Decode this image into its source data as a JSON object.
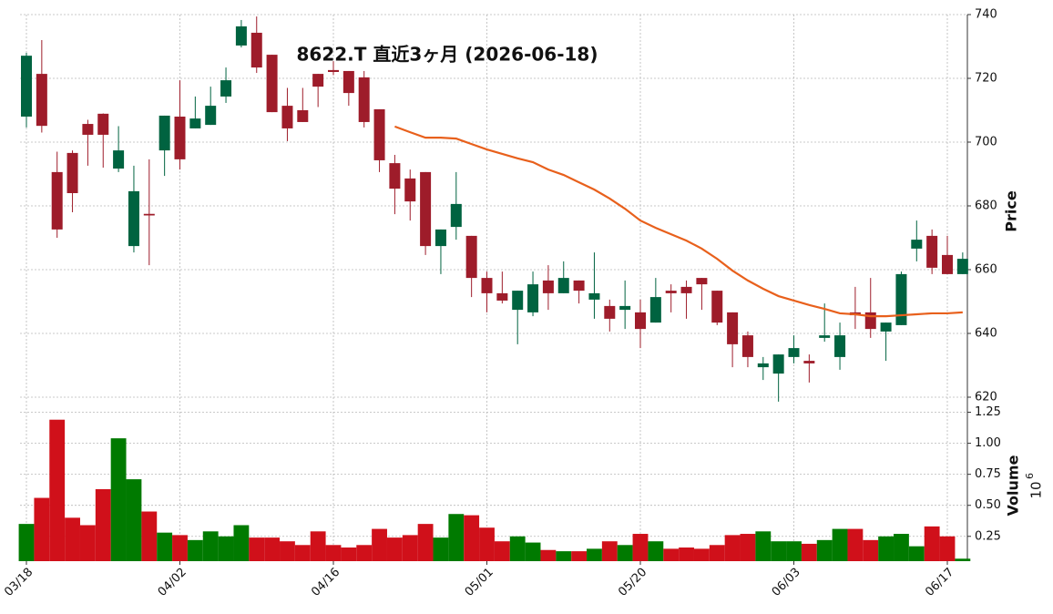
{
  "chart_data": [
    {
      "type": "candlestick",
      "title": "8622.T  直近3ヶ月  (2026-06-18)",
      "ylabel": "Price",
      "categories": [
        "03/18",
        null,
        null,
        null,
        null,
        null,
        null,
        null,
        null,
        null,
        "04/02",
        null,
        null,
        null,
        null,
        null,
        null,
        null,
        null,
        null,
        "04/16",
        null,
        null,
        null,
        null,
        null,
        null,
        null,
        null,
        null,
        "05/01",
        null,
        null,
        null,
        null,
        null,
        null,
        null,
        null,
        null,
        "05/20",
        null,
        null,
        null,
        null,
        null,
        null,
        null,
        null,
        null,
        "06/03",
        null,
        null,
        null,
        null,
        null,
        null,
        null,
        null,
        null,
        "06/17",
        null
      ],
      "open": [
        708,
        721.4,
        690.6,
        696.6,
        705.7,
        708.9,
        691.7,
        667.4,
        677.5,
        697.4,
        708,
        704.3,
        705.4,
        714.3,
        730.3,
        734.3,
        727.4,
        711.4,
        710,
        721.4,
        722.6,
        722.3,
        720.3,
        710.3,
        693.4,
        688.6,
        690.6,
        667.4,
        673.4,
        670.6,
        657.4,
        652.6,
        647.4,
        646.6,
        656.6,
        652.6,
        656.6,
        650.6,
        648.6,
        647.4,
        646.6,
        643.4,
        653.4,
        654.6,
        657.4,
        653.4,
        646.6,
        639.4,
        629.4,
        627.4,
        632.6,
        631.4,
        638.6,
        632.6,
        646.6,
        646.6,
        640.6,
        642.6,
        666.6,
        670.6,
        664.6,
        658.6
      ],
      "high": [
        728,
        732,
        697,
        697.4,
        707,
        709,
        705,
        692.6,
        694.6,
        708.3,
        719.4,
        714.3,
        717.4,
        723.4,
        738.3,
        739.4,
        727.4,
        717,
        717,
        721.4,
        725.4,
        722.3,
        722.3,
        710.3,
        696,
        691.4,
        690.6,
        672.6,
        690.6,
        670.6,
        659.4,
        659.4,
        653.4,
        659.4,
        661.4,
        662.6,
        656.6,
        665.4,
        650.6,
        656.6,
        650.6,
        657.4,
        655.4,
        656.6,
        657.4,
        653.4,
        646.6,
        640.6,
        632.6,
        633.4,
        639.4,
        633.4,
        649.4,
        643.4,
        654.6,
        657.4,
        643.4,
        659.4,
        675.4,
        672.6,
        670.6,
        665.4
      ],
      "low": [
        704.6,
        703,
        670,
        678,
        692.6,
        692,
        690.6,
        665.4,
        661.4,
        689.4,
        691.4,
        704.3,
        705.4,
        712.3,
        729.7,
        721.7,
        709.4,
        700.3,
        706.3,
        711,
        721,
        711.4,
        704.6,
        690.6,
        677.4,
        675.4,
        664.6,
        658.6,
        669.4,
        651.4,
        646.6,
        649.4,
        636.6,
        645.4,
        647.4,
        652.6,
        649.4,
        644.6,
        640.6,
        641.4,
        635.4,
        643.4,
        646.6,
        644.6,
        647.4,
        642.6,
        629.4,
        629.4,
        625.4,
        618.6,
        630.6,
        624.6,
        637.4,
        628.6,
        641.4,
        638.6,
        631.4,
        642.6,
        662.6,
        658.6,
        658.6,
        658.6
      ],
      "close": [
        727.1,
        705.1,
        672.6,
        684,
        702.3,
        702.3,
        697.4,
        684.6,
        677,
        708.3,
        694.6,
        707.4,
        711.4,
        719.4,
        736.3,
        723.4,
        709.4,
        704.3,
        706.3,
        717.4,
        722,
        715.4,
        706.3,
        694.3,
        685.4,
        681.4,
        667.4,
        672.6,
        680.6,
        657.4,
        652.6,
        650.3,
        653.4,
        655.4,
        652.6,
        657.4,
        653.4,
        652.6,
        644.6,
        648.6,
        641.4,
        651.4,
        652.6,
        652.6,
        655.4,
        643.4,
        636.6,
        632.6,
        630.6,
        633.4,
        635.4,
        630.6,
        639.4,
        639.4,
        645.7,
        641.4,
        643.4,
        658.6,
        669.4,
        660.6,
        658.6,
        663.4
      ],
      "up_color": "#006340",
      "down_color": "#9e1c2a",
      "ma": {
        "color": "#e8601c",
        "values": [
          null,
          null,
          null,
          null,
          null,
          null,
          null,
          null,
          null,
          null,
          null,
          null,
          null,
          null,
          null,
          null,
          null,
          null,
          null,
          null,
          null,
          null,
          null,
          null,
          704.9,
          703.1,
          701.4,
          701.4,
          701.1,
          699.4,
          697.7,
          696.3,
          694.9,
          693.7,
          691.4,
          689.7,
          687.4,
          685.1,
          682.3,
          679.1,
          675.4,
          673.1,
          671.1,
          669.1,
          666.6,
          663.4,
          659.7,
          656.6,
          654,
          651.7,
          650.3,
          648.9,
          647.7,
          646.3,
          646,
          645.4,
          645.4,
          645.7,
          646,
          646.3,
          646.3,
          646.6
        ]
      },
      "ylim": [
        618,
        740
      ],
      "yticks": [
        620,
        640,
        660,
        680,
        700,
        720,
        740
      ],
      "grid": true
    },
    {
      "type": "bar",
      "ylabel": "Volume",
      "offset_base": "10",
      "offset_exponent": "6",
      "values": [
        0.35,
        0.56,
        1.19,
        0.4,
        0.34,
        0.63,
        1.04,
        0.71,
        0.45,
        0.28,
        0.26,
        0.22,
        0.29,
        0.25,
        0.34,
        0.24,
        0.24,
        0.21,
        0.18,
        0.29,
        0.18,
        0.16,
        0.18,
        0.31,
        0.24,
        0.26,
        0.35,
        0.24,
        0.43,
        0.42,
        0.32,
        0.21,
        0.25,
        0.2,
        0.14,
        0.13,
        0.13,
        0.15,
        0.21,
        0.18,
        0.27,
        0.21,
        0.15,
        0.16,
        0.15,
        0.18,
        0.26,
        0.27,
        0.29,
        0.21,
        0.21,
        0.19,
        0.22,
        0.31,
        0.31,
        0.22,
        0.25,
        0.27,
        0.17,
        0.33,
        0.25,
        0.07
      ],
      "up_color": "#007a00",
      "down_color": "#d0101a",
      "ylim": [
        0.05,
        1.32
      ],
      "yticks": [
        0.25,
        {
          "value": 0.5,
          "label": "0.50"
        },
        0.75,
        {
          "value": 1.0,
          "label": "1.00"
        },
        1.25
      ],
      "grid": true
    }
  ]
}
